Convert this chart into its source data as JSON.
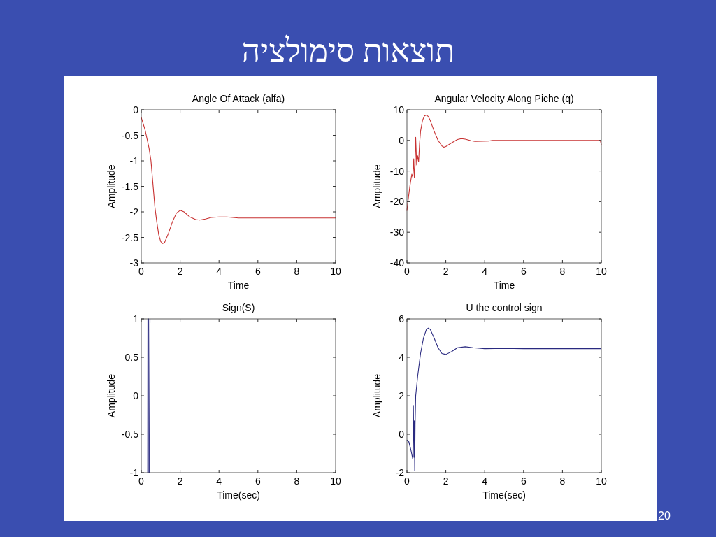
{
  "chart_data": [
    {
      "type": "line",
      "title": "Angle Of Attack (alfa)",
      "xlabel": "Time",
      "ylabel": "Amplitude",
      "xlim": [
        0,
        10
      ],
      "ylim": [
        -3,
        0
      ],
      "xticks": [
        0,
        2,
        4,
        6,
        8,
        10
      ],
      "yticks": [
        -3,
        -2.5,
        -2,
        -1.5,
        -1,
        -0.5,
        0
      ],
      "color": "#c83232",
      "annotations": [
        "תוצאות סימולציה",
        "20"
      ],
      "x": [
        0,
        0.2,
        0.4,
        0.5,
        0.6,
        0.7,
        0.8,
        0.9,
        1.0,
        1.1,
        1.2,
        1.4,
        1.6,
        1.8,
        2.0,
        2.2,
        2.5,
        2.8,
        3.0,
        3.3,
        3.6,
        4.0,
        4.4,
        5,
        10
      ],
      "values": [
        -0.15,
        -0.4,
        -0.75,
        -1.0,
        -1.45,
        -1.9,
        -2.2,
        -2.45,
        -2.58,
        -2.62,
        -2.6,
        -2.42,
        -2.2,
        -2.03,
        -1.97,
        -2.0,
        -2.1,
        -2.15,
        -2.16,
        -2.14,
        -2.11,
        -2.1,
        -2.1,
        -2.12,
        -2.12
      ]
    },
    {
      "type": "line",
      "title": "Angular Velocity Along Piche (q)",
      "xlabel": "Time",
      "ylabel": "Amplitude",
      "xlim": [
        0,
        10
      ],
      "ylim": [
        -40,
        10
      ],
      "xticks": [
        0,
        2,
        4,
        6,
        8,
        10
      ],
      "yticks": [
        -40,
        -30,
        -20,
        -10,
        0,
        10
      ],
      "color": "#c83232",
      "x": [
        0,
        0.05,
        0.15,
        0.25,
        0.3,
        0.35,
        0.38,
        0.42,
        0.45,
        0.5,
        0.55,
        0.6,
        0.65,
        0.7,
        0.8,
        0.9,
        1.0,
        1.1,
        1.2,
        1.4,
        1.6,
        1.8,
        1.9,
        2.0,
        2.3,
        2.6,
        2.8,
        3.0,
        3.3,
        3.5,
        4.2,
        4.4,
        9.95,
        10
      ],
      "values": [
        -23,
        -20,
        -15,
        -11,
        -12,
        -6,
        -12,
        -8,
        1,
        -8,
        -5,
        -7,
        -1,
        3,
        6.5,
        8,
        8.3,
        7.8,
        6.5,
        3,
        0,
        -1.8,
        -2.2,
        -2,
        -0.8,
        0.3,
        0.6,
        0.4,
        -0.1,
        -0.3,
        -0.2,
        0,
        0,
        -1.5
      ]
    },
    {
      "type": "line",
      "title": "Sign(S)",
      "xlabel": "Time(sec)",
      "ylabel": "Amplitude",
      "xlim": [
        0,
        10
      ],
      "ylim": [
        -1,
        1
      ],
      "xticks": [
        0,
        2,
        4,
        6,
        8,
        10
      ],
      "yticks": [
        -1,
        -0.5,
        0,
        0.5,
        1
      ],
      "color": "#3a3a8a",
      "x": [
        0.33,
        0.34,
        0.38,
        0.39,
        0.42,
        0.45
      ],
      "values": [
        -1,
        1,
        1,
        -1,
        -1,
        1
      ]
    },
    {
      "type": "line",
      "title": "U the control sign",
      "xlabel": "Time(sec)",
      "ylabel": "Amplitude",
      "xlim": [
        0,
        10
      ],
      "ylim": [
        -2,
        6
      ],
      "xticks": [
        0,
        2,
        4,
        6,
        8,
        10
      ],
      "yticks": [
        -2,
        0,
        2,
        4,
        6
      ],
      "color": "#2a2a80",
      "x": [
        0,
        0.1,
        0.2,
        0.3,
        0.33,
        0.36,
        0.38,
        0.4,
        0.42,
        0.45,
        0.55,
        0.7,
        0.85,
        1.0,
        1.1,
        1.2,
        1.4,
        1.6,
        1.8,
        2.0,
        2.3,
        2.6,
        3.0,
        3.4,
        4,
        5,
        6,
        10
      ],
      "values": [
        -0.3,
        -0.4,
        -0.8,
        -1.3,
        1.5,
        -1.2,
        0.7,
        -1.9,
        0.5,
        2,
        3,
        4.2,
        5,
        5.45,
        5.52,
        5.45,
        5.0,
        4.5,
        4.2,
        4.15,
        4.3,
        4.5,
        4.55,
        4.5,
        4.45,
        4.47,
        4.45,
        4.45
      ]
    }
  ]
}
